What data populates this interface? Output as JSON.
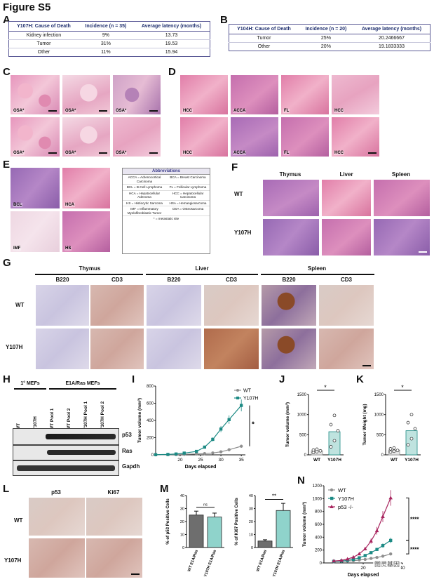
{
  "figure_title": "Figure S5",
  "panel_letters": [
    "A",
    "B",
    "C",
    "D",
    "E",
    "F",
    "G",
    "H",
    "I",
    "J",
    "K",
    "L",
    "M",
    "N"
  ],
  "table_a": {
    "headers": [
      "Y107H: Cause of Death",
      "Incidence (n = 35)",
      "Average latency (months)"
    ],
    "rows": [
      [
        "Kidney infection",
        "9%",
        "13.73"
      ],
      [
        "Tumor",
        "31%",
        "19.53"
      ],
      [
        "Other",
        "11%",
        "15.94"
      ]
    ]
  },
  "table_b": {
    "headers": [
      "Y104H: Cause of Death",
      "Incidence (n = 20)",
      "Average latency (months)"
    ],
    "rows": [
      [
        "Tumor",
        "25%",
        "20.2466667"
      ],
      [
        "Other",
        "20%",
        "19.1833333"
      ]
    ]
  },
  "panel_c_labels": [
    "OSA*",
    "OSA*",
    "OSA*",
    "OSA*",
    "OSA*",
    "OSA*"
  ],
  "panel_d_labels": [
    "HCC",
    "ACCA",
    "FL",
    "HCC",
    "HCC",
    "ACCA",
    "FL",
    "HCC"
  ],
  "panel_e_labels": [
    "BCL",
    "HCA",
    "IMF",
    "HS"
  ],
  "abbreviations": {
    "title": "Abbreviations",
    "items": [
      "ACCA = Adrenocortical Carcinoma",
      "BCA = Breast Carcinoma",
      "BCL = B-Cell Lymphoma",
      "FL = Follicular Lymphoma",
      "HCA = Hepatocellular Adenoma",
      "HCC = Hepatocellular Carcinoma",
      "HS = Histiocytic Sarcoma",
      "HSA = Hemangiosarcoma",
      "IMF = Inflammatory Myelofibroblastic Tumor",
      "OSA = Osteosarcoma"
    ],
    "footnote": "* = metastatic site"
  },
  "panel_f": {
    "columns": [
      "Thymus",
      "Liver",
      "Spleen"
    ],
    "rows": [
      "WT",
      "Y107H"
    ]
  },
  "panel_g": {
    "tissues": [
      "Thymus",
      "Liver",
      "Spleen"
    ],
    "stains": [
      "B220",
      "CD3",
      "B220",
      "CD3",
      "B220",
      "CD3"
    ],
    "rows": [
      "WT",
      "Y107H"
    ]
  },
  "panel_h": {
    "groups": [
      "1° MEFs",
      "E1A/Ras MEFs"
    ],
    "lanes": [
      "WT",
      "Y107H",
      "WT Pool 1",
      "WT Pool 2",
      "Y107H Pool 1",
      "Y107H Pool 2"
    ],
    "blots": [
      "p53",
      "Ras",
      "Gapdh"
    ]
  },
  "panel_l": {
    "columns": [
      "p53",
      "Ki67"
    ],
    "rows": [
      "WT",
      "Y107H"
    ]
  },
  "colors": {
    "wt": "#8f8f8f",
    "y107h": "#1c8a84",
    "p53null": "#a8245e",
    "table_border": "#5b5a96",
    "table_header_text": "#1e2e6e"
  },
  "watermark": "图灵基因",
  "chart_data": [
    {
      "panel": "I",
      "type": "line",
      "xlabel": "Days elapsed",
      "ylabel": "Tumor volume (mm³)",
      "xlim": [
        14,
        36
      ],
      "ylim": [
        0,
        800
      ],
      "xticks": [
        20,
        25,
        30,
        35
      ],
      "yticks": [
        0,
        200,
        400,
        600,
        800
      ],
      "series": [
        {
          "name": "WT",
          "x": [
            14,
            17,
            19,
            21,
            24,
            26,
            28,
            30,
            32,
            35
          ],
          "y": [
            0,
            2,
            4,
            6,
            10,
            15,
            22,
            35,
            60,
            100
          ]
        },
        {
          "name": "Y107H",
          "x": [
            14,
            17,
            19,
            21,
            24,
            26,
            28,
            30,
            32,
            35
          ],
          "y": [
            2,
            5,
            10,
            20,
            40,
            90,
            180,
            300,
            410,
            575
          ]
        }
      ],
      "legend": "top-right",
      "significance": "*"
    },
    {
      "panel": "J",
      "type": "bar",
      "ylabel": "Tumor volume (mm³)",
      "ylim": [
        0,
        1500
      ],
      "yticks": [
        0,
        500,
        1000,
        1500
      ],
      "categories": [
        "WT",
        "Y107H"
      ],
      "values": [
        100,
        575
      ],
      "points": {
        "WT": [
          60,
          80,
          100,
          120,
          140
        ],
        "Y107H": [
          200,
          350,
          600,
          750,
          980
        ]
      },
      "significance": "*"
    },
    {
      "panel": "K",
      "type": "bar",
      "ylabel": "Tumor Weight (mg)",
      "ylim": [
        0,
        1500
      ],
      "yticks": [
        0,
        500,
        1000,
        1500
      ],
      "categories": [
        "WT",
        "Y107H"
      ],
      "values": [
        120,
        600
      ],
      "points": {
        "WT": [
          70,
          90,
          110,
          150,
          170
        ],
        "Y107H": [
          250,
          400,
          650,
          800,
          1000
        ]
      },
      "significance": "*"
    },
    {
      "panel": "M1",
      "type": "bar",
      "ylabel": "% of p53 Positive Cells",
      "ylim": [
        0,
        40
      ],
      "yticks": [
        0,
        10,
        20,
        30,
        40
      ],
      "categories": [
        "WT E1A/Ras",
        "Y107H E1A/Ras"
      ],
      "values": [
        25,
        23.5
      ],
      "errors": [
        3,
        3
      ],
      "significance": "ns"
    },
    {
      "panel": "M2",
      "type": "bar",
      "ylabel": "% of Ki67 Positive Cells",
      "ylim": [
        0,
        40
      ],
      "yticks": [
        0,
        10,
        20,
        30,
        40
      ],
      "categories": [
        "WT E1A/Ras",
        "Y107H E1A/Ras"
      ],
      "values": [
        5,
        28.5
      ],
      "errors": [
        1,
        5.5
      ],
      "significance": "**"
    },
    {
      "panel": "N",
      "type": "line",
      "xlabel": "Days elapsed",
      "ylabel": "Tumor volume (mm³)",
      "xlim": [
        0,
        40
      ],
      "ylim": [
        0,
        1200
      ],
      "xticks": [
        20,
        40
      ],
      "yticks": [
        0,
        200,
        400,
        600,
        800,
        1000,
        1200
      ],
      "series": [
        {
          "name": "WT",
          "x": [
            5,
            9,
            12,
            15,
            18,
            21,
            24,
            27,
            30,
            34
          ],
          "y": [
            20,
            25,
            30,
            35,
            45,
            55,
            70,
            85,
            105,
            140
          ]
        },
        {
          "name": "Y107H",
          "x": [
            5,
            9,
            12,
            15,
            18,
            21,
            24,
            27,
            30,
            34
          ],
          "y": [
            25,
            30,
            40,
            55,
            80,
            115,
            160,
            210,
            270,
            350
          ]
        },
        {
          "name": "p53 -/-",
          "x": [
            5,
            9,
            12,
            15,
            18,
            21,
            24,
            27,
            30,
            34
          ],
          "y": [
            30,
            40,
            60,
            90,
            140,
            220,
            340,
            500,
            720,
            1010
          ]
        }
      ],
      "legend": "top-left",
      "significance": [
        "****",
        "****"
      ]
    }
  ]
}
